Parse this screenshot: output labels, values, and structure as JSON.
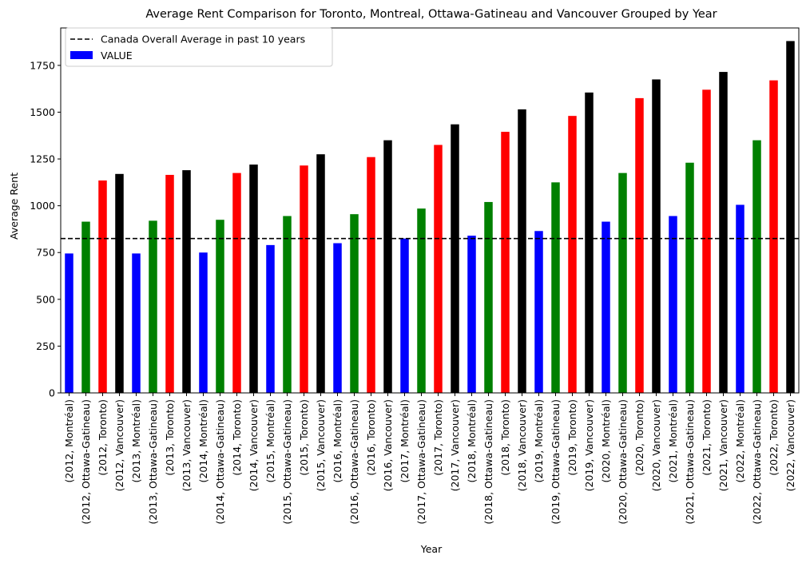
{
  "chart_data": {
    "type": "bar",
    "title": "Average Rent Comparison for Toronto, Montreal, Ottawa-Gatineau and Vancouver Grouped by Year",
    "xlabel": "Year",
    "ylabel": "Average Rent",
    "ylim": [
      0,
      1950
    ],
    "yticks": [
      0,
      250,
      500,
      750,
      1000,
      1250,
      1500,
      1750
    ],
    "legend_position": "top-left",
    "reference_line": {
      "label": "Canada Overall Average in past 10 years",
      "value": 825,
      "style": "dashed",
      "color": "#000000"
    },
    "series_legend_label": "VALUE",
    "series_legend_color": "#0000ff",
    "city_colors": {
      "Montréal": "#0000ff",
      "Ottawa-Gatineau": "#008000",
      "Toronto": "#ff0000",
      "Vancouver": "#000000"
    },
    "bars": [
      {
        "label": "(2012, Montréal)",
        "city": "Montréal",
        "value": 745
      },
      {
        "label": "(2012, Ottawa-Gatineau)",
        "city": "Ottawa-Gatineau",
        "value": 915
      },
      {
        "label": "(2012, Toronto)",
        "city": "Toronto",
        "value": 1135
      },
      {
        "label": "(2012, Vancouver)",
        "city": "Vancouver",
        "value": 1170
      },
      {
        "label": "(2013, Montréal)",
        "city": "Montréal",
        "value": 745
      },
      {
        "label": "(2013, Ottawa-Gatineau)",
        "city": "Ottawa-Gatineau",
        "value": 920
      },
      {
        "label": "(2013, Toronto)",
        "city": "Toronto",
        "value": 1165
      },
      {
        "label": "(2013, Vancouver)",
        "city": "Vancouver",
        "value": 1190
      },
      {
        "label": "(2014, Montréal)",
        "city": "Montréal",
        "value": 750
      },
      {
        "label": "(2014, Ottawa-Gatineau)",
        "city": "Ottawa-Gatineau",
        "value": 925
      },
      {
        "label": "(2014, Toronto)",
        "city": "Toronto",
        "value": 1175
      },
      {
        "label": "(2014, Vancouver)",
        "city": "Vancouver",
        "value": 1220
      },
      {
        "label": "(2015, Montréal)",
        "city": "Montréal",
        "value": 790
      },
      {
        "label": "(2015, Ottawa-Gatineau)",
        "city": "Ottawa-Gatineau",
        "value": 945
      },
      {
        "label": "(2015, Toronto)",
        "city": "Toronto",
        "value": 1215
      },
      {
        "label": "(2015, Vancouver)",
        "city": "Vancouver",
        "value": 1275
      },
      {
        "label": "(2016, Montréal)",
        "city": "Montréal",
        "value": 800
      },
      {
        "label": "(2016, Ottawa-Gatineau)",
        "city": "Ottawa-Gatineau",
        "value": 955
      },
      {
        "label": "(2016, Toronto)",
        "city": "Toronto",
        "value": 1260
      },
      {
        "label": "(2016, Vancouver)",
        "city": "Vancouver",
        "value": 1350
      },
      {
        "label": "(2017, Montréal)",
        "city": "Montréal",
        "value": 825
      },
      {
        "label": "(2017, Ottawa-Gatineau)",
        "city": "Ottawa-Gatineau",
        "value": 985
      },
      {
        "label": "(2017, Toronto)",
        "city": "Toronto",
        "value": 1325
      },
      {
        "label": "(2017, Vancouver)",
        "city": "Vancouver",
        "value": 1435
      },
      {
        "label": "(2018, Montréal)",
        "city": "Montréal",
        "value": 840
      },
      {
        "label": "(2018, Ottawa-Gatineau)",
        "city": "Ottawa-Gatineau",
        "value": 1020
      },
      {
        "label": "(2018, Toronto)",
        "city": "Toronto",
        "value": 1395
      },
      {
        "label": "(2018, Vancouver)",
        "city": "Vancouver",
        "value": 1515
      },
      {
        "label": "(2019, Montréal)",
        "city": "Montréal",
        "value": 865
      },
      {
        "label": "(2019, Ottawa-Gatineau)",
        "city": "Ottawa-Gatineau",
        "value": 1125
      },
      {
        "label": "(2019, Toronto)",
        "city": "Toronto",
        "value": 1480
      },
      {
        "label": "(2019, Vancouver)",
        "city": "Vancouver",
        "value": 1605
      },
      {
        "label": "(2020, Montréal)",
        "city": "Montréal",
        "value": 915
      },
      {
        "label": "(2020, Ottawa-Gatineau)",
        "city": "Ottawa-Gatineau",
        "value": 1175
      },
      {
        "label": "(2020, Toronto)",
        "city": "Toronto",
        "value": 1575
      },
      {
        "label": "(2020, Vancouver)",
        "city": "Vancouver",
        "value": 1675
      },
      {
        "label": "(2021, Montréal)",
        "city": "Montréal",
        "value": 945
      },
      {
        "label": "(2021, Ottawa-Gatineau)",
        "city": "Ottawa-Gatineau",
        "value": 1230
      },
      {
        "label": "(2021, Toronto)",
        "city": "Toronto",
        "value": 1620
      },
      {
        "label": "(2021, Vancouver)",
        "city": "Vancouver",
        "value": 1715
      },
      {
        "label": "(2022, Montréal)",
        "city": "Montréal",
        "value": 1005
      },
      {
        "label": "(2022, Ottawa-Gatineau)",
        "city": "Ottawa-Gatineau",
        "value": 1350
      },
      {
        "label": "(2022, Toronto)",
        "city": "Toronto",
        "value": 1670
      },
      {
        "label": "(2022, Vancouver)",
        "city": "Vancouver",
        "value": 1880
      }
    ]
  }
}
